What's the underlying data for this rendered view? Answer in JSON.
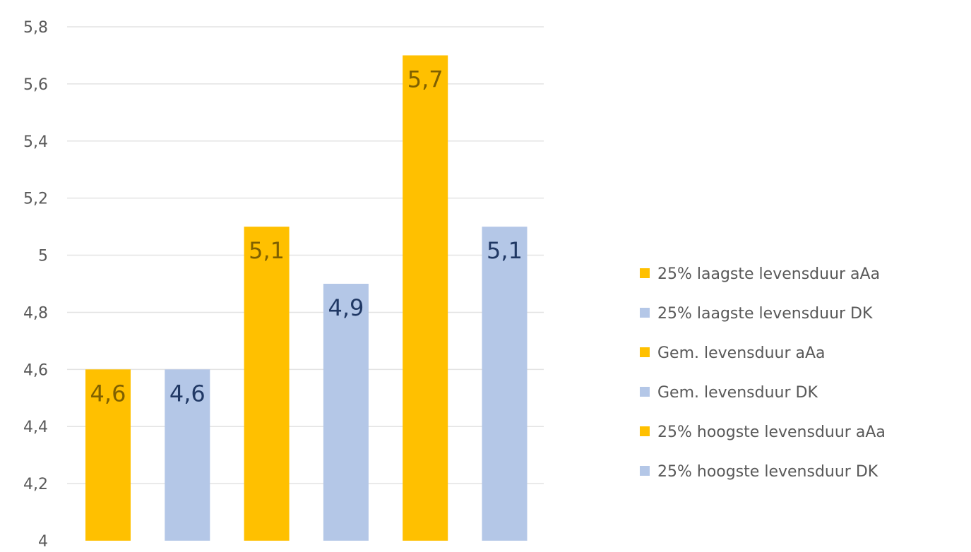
{
  "chart_data": {
    "type": "bar",
    "title": "",
    "xlabel": "",
    "ylabel": "",
    "ylim": [
      4,
      5.8
    ],
    "y_ticks": [
      4,
      4.2,
      4.4,
      4.6,
      4.8,
      5,
      5.2,
      5.4,
      5.6,
      5.8
    ],
    "y_tick_labels": [
      "4",
      "4,2",
      "4,4",
      "4,6",
      "4,8",
      "5",
      "5,2",
      "5,4",
      "5,6",
      "5,8"
    ],
    "grid": "horizontal",
    "legend_position": "right",
    "series": [
      {
        "name": "25% laagste levensduur aAa",
        "value": 4.6,
        "label": "4,6",
        "color": "#FFC000",
        "label_color": "#7F6000"
      },
      {
        "name": "25% laagste levensduur DK",
        "value": 4.6,
        "label": "4,6",
        "color": "#B4C7E7",
        "label_color": "#203864"
      },
      {
        "name": "Gem. levensduur aAa",
        "value": 5.1,
        "label": "5,1",
        "color": "#FFC000",
        "label_color": "#7F6000"
      },
      {
        "name": "Gem. levensduur DK",
        "value": 4.9,
        "label": "4,9",
        "color": "#B4C7E7",
        "label_color": "#203864"
      },
      {
        "name": "25% hoogste levensduur aAa",
        "value": 5.7,
        "label": "5,7",
        "color": "#FFC000",
        "label_color": "#7F6000"
      },
      {
        "name": "25% hoogste levensduur DK",
        "value": 5.1,
        "label": "5,1",
        "color": "#B4C7E7",
        "label_color": "#203864"
      }
    ]
  }
}
